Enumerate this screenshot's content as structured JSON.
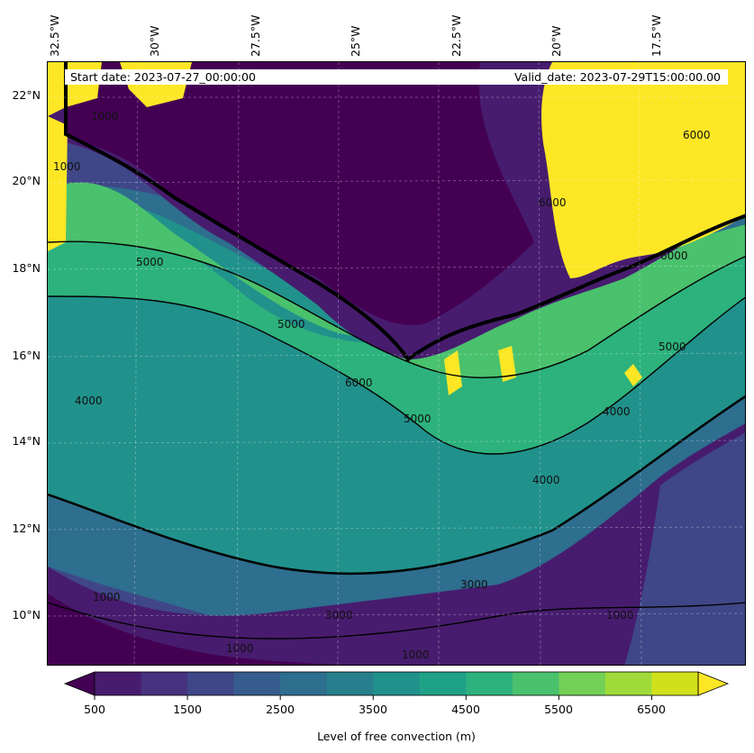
{
  "map": {
    "lon_labels": [
      "32.5°W",
      "30°W",
      "27.5°W",
      "25°W",
      "22.5°W",
      "20°W",
      "17.5°W"
    ],
    "lat_labels": [
      "22°N",
      "20°N",
      "18°N",
      "16°N",
      "14°N",
      "12°N",
      "10°N"
    ],
    "start_date": "Start date: 2023-07-27_00:00:00",
    "valid_date": "Valid_date: 2023-07-29T15:00:00.00",
    "contour_labels": [
      "1000",
      "1000",
      "1000",
      "1000",
      "1000",
      "1000",
      "3000",
      "3000",
      "4000",
      "4000",
      "4000",
      "5000",
      "5000",
      "5000",
      "5000",
      "6000",
      "6000",
      "6000",
      "6000"
    ],
    "gridlines": "dashed-light"
  },
  "colorbar": {
    "tick_labels": [
      "500",
      "1500",
      "2500",
      "3500",
      "4500",
      "5500",
      "6500"
    ],
    "label": "Level of free convection (m)",
    "levels": [
      500,
      1000,
      1500,
      2000,
      2500,
      3000,
      3500,
      4000,
      4500,
      5000,
      5500,
      6000,
      6500,
      7000
    ],
    "extend": "both",
    "colors": [
      "#440154",
      "#471c6e",
      "#46327e",
      "#3f4788",
      "#365c8d",
      "#2e6e8e",
      "#277f8e",
      "#21918c",
      "#1fa187",
      "#2db27d",
      "#4ac16d",
      "#73d056",
      "#a0da39",
      "#d0e11c",
      "#fde725"
    ]
  }
}
